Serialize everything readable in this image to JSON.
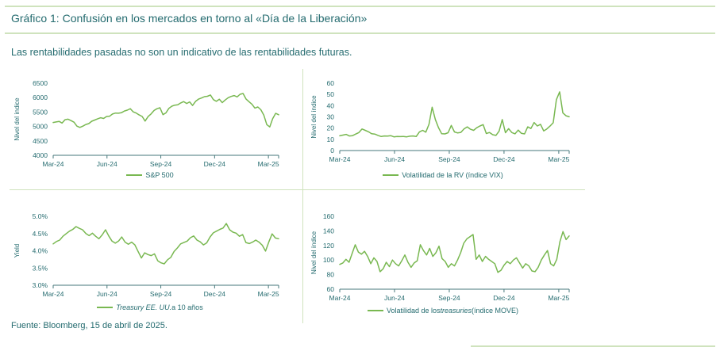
{
  "page": {
    "title": "Gráfico 1: Confusión en los mercados en torno al «Día de la Liberación»",
    "subtitle": "Las rentabilidades pasadas no son un indicativo de las rentabilidades futuras.",
    "source": "Fuente: Bloomberg, 15 de abril de 2025."
  },
  "colors": {
    "teal_text": "#246b6f",
    "line_green": "#79b851",
    "rule_green": "#cfe3bd",
    "axis": "#46777b"
  },
  "chart_data": [
    {
      "id": "sp500",
      "type": "line",
      "ylabel": "Nivel del índice",
      "ylim": [
        4000,
        6500
      ],
      "y_ticks": [
        4000,
        4500,
        5000,
        5500,
        6000,
        6500
      ],
      "ytick_format": "plain",
      "x_ticks": [
        "Mar-24",
        "Jun-24",
        "Sep-24",
        "Dec-24",
        "Mar-25"
      ],
      "xtick_months": [
        0,
        3,
        6,
        9,
        12
      ],
      "months_span": 12.57,
      "legend": [
        {
          "text": "S&P 500",
          "italic": false
        }
      ],
      "values": [
        5137,
        5157,
        5175,
        5117,
        5234,
        5254,
        5204,
        5147,
        5011,
        4967,
        5010,
        5070,
        5100,
        5180,
        5222,
        5267,
        5303,
        5277,
        5346,
        5354,
        5431,
        5464,
        5460,
        5475,
        5537,
        5567,
        5615,
        5505,
        5463,
        5399,
        5346,
        5186,
        5344,
        5433,
        5554,
        5616,
        5648,
        5408,
        5471,
        5626,
        5702,
        5738,
        5751,
        5815,
        5864,
        5797,
        5853,
        5728,
        5870,
        5949,
        5987,
        6032,
        6047,
        6090,
        5930,
        5872,
        5942,
        5827,
        5918,
        5996,
        6040,
        6071,
        6025,
        6115,
        6144,
        5954,
        5861,
        5770,
        5638,
        5675,
        5580,
        5396,
        5062,
        4983,
        5268,
        5456,
        5406
      ]
    },
    {
      "id": "vix",
      "type": "line",
      "ylabel": "Nivel del índice",
      "ylim": [
        0,
        60
      ],
      "y_ticks": [
        0,
        10,
        20,
        30,
        40,
        50,
        60
      ],
      "ytick_format": "plain",
      "x_ticks": [
        "Mar-24",
        "Jun-24",
        "Sep-24",
        "Dec-24",
        "Mar-25"
      ],
      "xtick_months": [
        0,
        3,
        6,
        9,
        12
      ],
      "months_span": 12.57,
      "legend": [
        {
          "text": "Volatilidad de la RV (índice VIX)",
          "italic": false
        }
      ],
      "values": [
        13.1,
        13.8,
        14.4,
        13.0,
        13.3,
        14.7,
        16.0,
        19.2,
        18.0,
        16.7,
        15.0,
        14.7,
        13.5,
        12.5,
        13.0,
        12.9,
        13.3,
        12.2,
        12.5,
        12.4,
        12.6,
        12.2,
        12.8,
        13.0,
        12.5,
        16.5,
        18.0,
        16.4,
        23.4,
        38.6,
        27.7,
        20.4,
        15.0,
        14.8,
        15.9,
        22.4,
        16.6,
        15.7,
        16.2,
        19.3,
        21.1,
        19.0,
        18.0,
        20.3,
        21.9,
        23.1,
        15.2,
        16.1,
        14.1,
        13.5,
        17.2,
        27.6,
        15.9,
        19.5,
        16.0,
        14.9,
        18.2,
        15.3,
        14.8,
        21.1,
        19.6,
        24.9,
        21.9,
        23.4,
        17.5,
        19.3,
        21.8,
        24.8,
        45.3,
        52.3,
        33.6,
        31.0,
        30.1
      ]
    },
    {
      "id": "treasury10y",
      "type": "line",
      "ylabel": "Yield",
      "ylim": [
        3.0,
        5.0
      ],
      "y_ticks": [
        3.0,
        3.5,
        4.0,
        4.5,
        5.0
      ],
      "ytick_format": "pct1",
      "x_ticks": [
        "Mar-24",
        "Jun-24",
        "Sep-24",
        "Dec-24",
        "Mar-25"
      ],
      "xtick_months": [
        0,
        3,
        6,
        9,
        12
      ],
      "months_span": 12.57,
      "legend": [
        {
          "text": "Treasury EE. UU.",
          "italic": true
        },
        {
          "text": " a 10 años",
          "italic": false
        }
      ],
      "values": [
        4.2,
        4.27,
        4.31,
        4.42,
        4.5,
        4.57,
        4.62,
        4.7,
        4.65,
        4.61,
        4.5,
        4.44,
        4.51,
        4.42,
        4.35,
        4.46,
        4.61,
        4.43,
        4.28,
        4.22,
        4.28,
        4.4,
        4.25,
        4.19,
        4.25,
        4.17,
        3.98,
        3.79,
        3.94,
        3.89,
        3.86,
        3.91,
        3.71,
        3.65,
        3.62,
        3.74,
        3.81,
        3.98,
        4.08,
        4.2,
        4.24,
        4.28,
        4.38,
        4.43,
        4.31,
        4.26,
        4.17,
        4.23,
        4.4,
        4.52,
        4.57,
        4.62,
        4.66,
        4.79,
        4.61,
        4.54,
        4.51,
        4.42,
        4.47,
        4.24,
        4.21,
        4.25,
        4.31,
        4.25,
        4.16,
        3.99,
        4.26,
        4.49,
        4.37,
        4.35
      ]
    },
    {
      "id": "move",
      "type": "line",
      "ylabel": "Nivel del índice",
      "ylim": [
        60,
        160
      ],
      "y_ticks": [
        60,
        80,
        100,
        120,
        140,
        160
      ],
      "ytick_format": "plain",
      "x_ticks": [
        "Mar-24",
        "Jun-24",
        "Sep-24",
        "Dec-24",
        "Mar-25"
      ],
      "xtick_months": [
        0,
        3,
        6,
        9,
        12
      ],
      "months_span": 12.57,
      "legend": [
        {
          "text": "Volatilidad de los ",
          "italic": false
        },
        {
          "text": "treasuries",
          "italic": true
        },
        {
          "text": " (índice MOVE)",
          "italic": false
        }
      ],
      "values": [
        94,
        96,
        101,
        97,
        109,
        121,
        111,
        108,
        112,
        105,
        95,
        103,
        98,
        84,
        88,
        97,
        91,
        100,
        95,
        92,
        99,
        107,
        97,
        90,
        96,
        99,
        121,
        113,
        107,
        116,
        105,
        110,
        119,
        102,
        98,
        90,
        95,
        92,
        100,
        110,
        123,
        129,
        132,
        135,
        101,
        107,
        98,
        105,
        101,
        98,
        95,
        83,
        86,
        93,
        98,
        95,
        100,
        103,
        96,
        89,
        95,
        92,
        85,
        84,
        90,
        100,
        107,
        113,
        95,
        92,
        101,
        125,
        139,
        128,
        133
      ]
    }
  ]
}
